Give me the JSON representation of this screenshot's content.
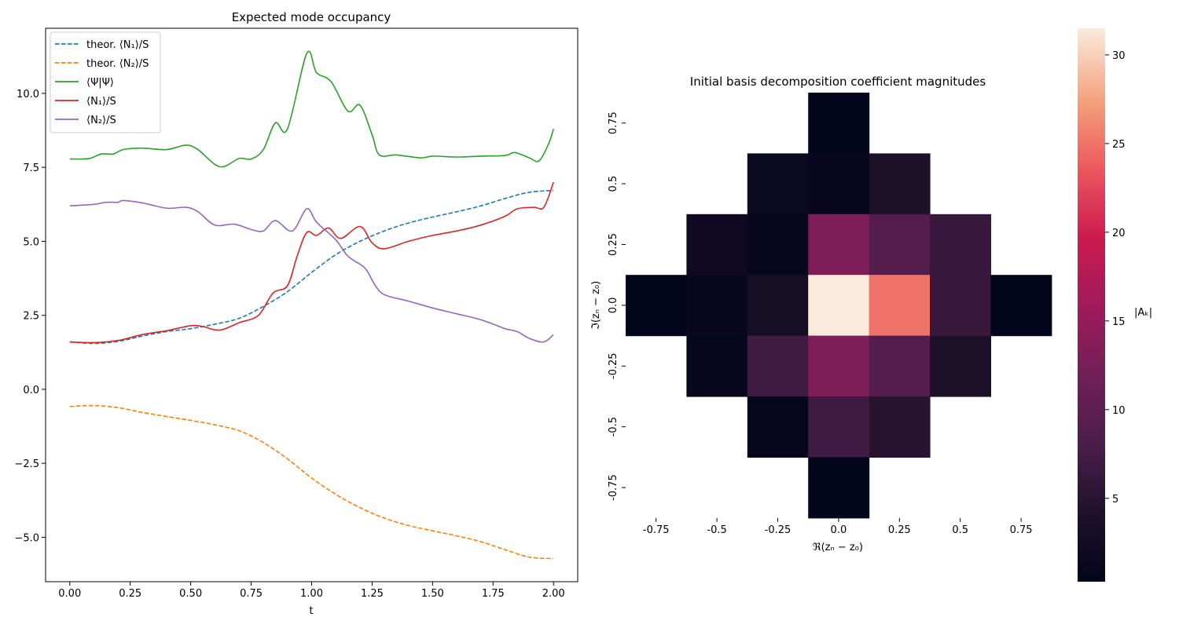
{
  "chart_data": [
    {
      "type": "line",
      "title": "Expected mode occupancy",
      "xlabel": "t",
      "ylabel": "",
      "xlim": [
        -0.1,
        2.1
      ],
      "ylim": [
        -6.5,
        12.2
      ],
      "xticks": [
        0.0,
        0.25,
        0.5,
        0.75,
        1.0,
        1.25,
        1.5,
        1.75,
        2.0
      ],
      "xtick_labels": [
        "0.00",
        "0.25",
        "0.50",
        "0.75",
        "1.00",
        "1.25",
        "1.50",
        "1.75",
        "2.00"
      ],
      "yticks": [
        -5.0,
        -2.5,
        0.0,
        2.5,
        5.0,
        7.5,
        10.0
      ],
      "ytick_labels": [
        "−5.0",
        "−2.5",
        "0.0",
        "2.5",
        "5.0",
        "7.5",
        "10.0"
      ],
      "grid": false,
      "legend_position": "upper-left",
      "series": [
        {
          "name": "theor. ⟨N₁⟩/S",
          "color": "#1f77b4",
          "dash": "dashed",
          "points": [
            [
              0.0,
              1.6
            ],
            [
              0.1,
              1.55
            ],
            [
              0.2,
              1.62
            ],
            [
              0.3,
              1.8
            ],
            [
              0.4,
              1.95
            ],
            [
              0.5,
              2.05
            ],
            [
              0.6,
              2.2
            ],
            [
              0.7,
              2.4
            ],
            [
              0.8,
              2.8
            ],
            [
              0.9,
              3.3
            ],
            [
              1.0,
              3.95
            ],
            [
              1.1,
              4.55
            ],
            [
              1.2,
              5.0
            ],
            [
              1.3,
              5.35
            ],
            [
              1.4,
              5.62
            ],
            [
              1.5,
              5.82
            ],
            [
              1.6,
              6.0
            ],
            [
              1.7,
              6.2
            ],
            [
              1.8,
              6.45
            ],
            [
              1.9,
              6.66
            ],
            [
              2.0,
              6.72
            ]
          ]
        },
        {
          "name": "theor. ⟨N₂⟩/S",
          "color": "#ff7f0e",
          "dash": "dashed",
          "points": [
            [
              0.0,
              -0.58
            ],
            [
              0.1,
              -0.55
            ],
            [
              0.2,
              -0.62
            ],
            [
              0.3,
              -0.78
            ],
            [
              0.4,
              -0.92
            ],
            [
              0.5,
              -1.05
            ],
            [
              0.6,
              -1.2
            ],
            [
              0.7,
              -1.4
            ],
            [
              0.8,
              -1.8
            ],
            [
              0.9,
              -2.35
            ],
            [
              1.0,
              -3.0
            ],
            [
              1.1,
              -3.55
            ],
            [
              1.2,
              -4.0
            ],
            [
              1.3,
              -4.35
            ],
            [
              1.4,
              -4.6
            ],
            [
              1.5,
              -4.78
            ],
            [
              1.6,
              -4.95
            ],
            [
              1.7,
              -5.15
            ],
            [
              1.8,
              -5.42
            ],
            [
              1.9,
              -5.67
            ],
            [
              2.0,
              -5.72
            ]
          ]
        },
        {
          "name": "⟨Ψ|Ψ⟩",
          "color": "#2ca02c",
          "dash": "solid",
          "points": [
            [
              0.0,
              7.78
            ],
            [
              0.08,
              7.8
            ],
            [
              0.13,
              7.95
            ],
            [
              0.18,
              7.95
            ],
            [
              0.22,
              8.1
            ],
            [
              0.3,
              8.15
            ],
            [
              0.4,
              8.1
            ],
            [
              0.48,
              8.25
            ],
            [
              0.53,
              8.1
            ],
            [
              0.62,
              7.52
            ],
            [
              0.7,
              7.8
            ],
            [
              0.75,
              7.78
            ],
            [
              0.8,
              8.1
            ],
            [
              0.85,
              9.0
            ],
            [
              0.9,
              8.8
            ],
            [
              0.98,
              11.35
            ],
            [
              1.02,
              10.7
            ],
            [
              1.08,
              10.4
            ],
            [
              1.15,
              9.4
            ],
            [
              1.2,
              9.6
            ],
            [
              1.25,
              8.6
            ],
            [
              1.28,
              7.92
            ],
            [
              1.35,
              7.92
            ],
            [
              1.45,
              7.82
            ],
            [
              1.5,
              7.88
            ],
            [
              1.6,
              7.85
            ],
            [
              1.7,
              7.88
            ],
            [
              1.8,
              7.9
            ],
            [
              1.84,
              8.0
            ],
            [
              1.9,
              7.82
            ],
            [
              1.94,
              7.72
            ],
            [
              1.98,
              8.3
            ],
            [
              2.0,
              8.8
            ]
          ]
        },
        {
          "name": "⟨N₁⟩/S",
          "color": "#d62728",
          "dash": "solid",
          "points": [
            [
              0.0,
              1.6
            ],
            [
              0.1,
              1.58
            ],
            [
              0.2,
              1.65
            ],
            [
              0.3,
              1.85
            ],
            [
              0.4,
              1.98
            ],
            [
              0.5,
              2.15
            ],
            [
              0.55,
              2.12
            ],
            [
              0.62,
              2.0
            ],
            [
              0.7,
              2.25
            ],
            [
              0.78,
              2.5
            ],
            [
              0.84,
              3.25
            ],
            [
              0.9,
              3.5
            ],
            [
              0.94,
              4.5
            ],
            [
              0.98,
              5.3
            ],
            [
              1.02,
              5.2
            ],
            [
              1.07,
              5.45
            ],
            [
              1.12,
              5.1
            ],
            [
              1.2,
              5.5
            ],
            [
              1.25,
              4.95
            ],
            [
              1.3,
              4.75
            ],
            [
              1.4,
              5.0
            ],
            [
              1.5,
              5.2
            ],
            [
              1.6,
              5.35
            ],
            [
              1.7,
              5.55
            ],
            [
              1.8,
              5.85
            ],
            [
              1.85,
              6.1
            ],
            [
              1.92,
              6.15
            ],
            [
              1.96,
              6.15
            ],
            [
              2.0,
              7.0
            ]
          ]
        },
        {
          "name": "⟨N₂⟩/S",
          "color": "#9467bd",
          "dash": "solid",
          "points": [
            [
              0.0,
              6.2
            ],
            [
              0.1,
              6.25
            ],
            [
              0.15,
              6.32
            ],
            [
              0.2,
              6.32
            ],
            [
              0.22,
              6.38
            ],
            [
              0.3,
              6.3
            ],
            [
              0.4,
              6.12
            ],
            [
              0.48,
              6.15
            ],
            [
              0.53,
              6.0
            ],
            [
              0.6,
              5.55
            ],
            [
              0.68,
              5.58
            ],
            [
              0.75,
              5.4
            ],
            [
              0.8,
              5.35
            ],
            [
              0.85,
              5.7
            ],
            [
              0.92,
              5.35
            ],
            [
              0.98,
              6.1
            ],
            [
              1.02,
              5.65
            ],
            [
              1.1,
              5.05
            ],
            [
              1.15,
              4.5
            ],
            [
              1.22,
              4.1
            ],
            [
              1.26,
              3.55
            ],
            [
              1.3,
              3.2
            ],
            [
              1.4,
              2.98
            ],
            [
              1.5,
              2.75
            ],
            [
              1.6,
              2.55
            ],
            [
              1.7,
              2.35
            ],
            [
              1.8,
              2.05
            ],
            [
              1.85,
              1.95
            ],
            [
              1.9,
              1.72
            ],
            [
              1.96,
              1.6
            ],
            [
              2.0,
              1.85
            ]
          ]
        }
      ]
    },
    {
      "type": "heatmap",
      "title": "Initial basis decomposition coefficient magnitudes",
      "xlabel": "ℜ(zₙ − z₀)",
      "ylabel": "ℑ(zₙ − z₀)",
      "x_categories": [
        -0.75,
        -0.5,
        -0.25,
        0.0,
        0.25,
        0.5,
        0.75
      ],
      "y_categories": [
        0.75,
        0.5,
        0.25,
        0.0,
        -0.25,
        -0.5,
        -0.75
      ],
      "x_tick_labels": [
        "-0.75",
        "-0.5",
        "-0.25",
        "0.0",
        "0.25",
        "0.5",
        "0.75"
      ],
      "y_tick_labels": [
        "0.75",
        "0.5",
        "0.25",
        "0.0",
        "-0.25",
        "-0.5",
        "-0.75"
      ],
      "values": [
        [
          null,
          null,
          null,
          0.5,
          null,
          null,
          null
        ],
        [
          null,
          null,
          1.5,
          1.0,
          4.0,
          null,
          null
        ],
        [
          null,
          2.0,
          0.8,
          13.0,
          9.0,
          6.5,
          null
        ],
        [
          0.3,
          1.0,
          3.0,
          31.5,
          25.0,
          6.5,
          0.3
        ],
        [
          null,
          0.8,
          7.0,
          13.0,
          9.0,
          4.0,
          null
        ],
        [
          null,
          null,
          0.8,
          7.0,
          5.0,
          null,
          null
        ],
        [
          null,
          null,
          null,
          0.5,
          null,
          null,
          null
        ]
      ],
      "colorbar": {
        "label": "|Aₖ|",
        "range": [
          0.3,
          31.5
        ],
        "ticks": [
          5,
          10,
          15,
          20,
          25,
          30
        ],
        "tick_labels": [
          "5",
          "10",
          "15",
          "20",
          "25",
          "30"
        ],
        "colormap": "rocket"
      }
    }
  ]
}
